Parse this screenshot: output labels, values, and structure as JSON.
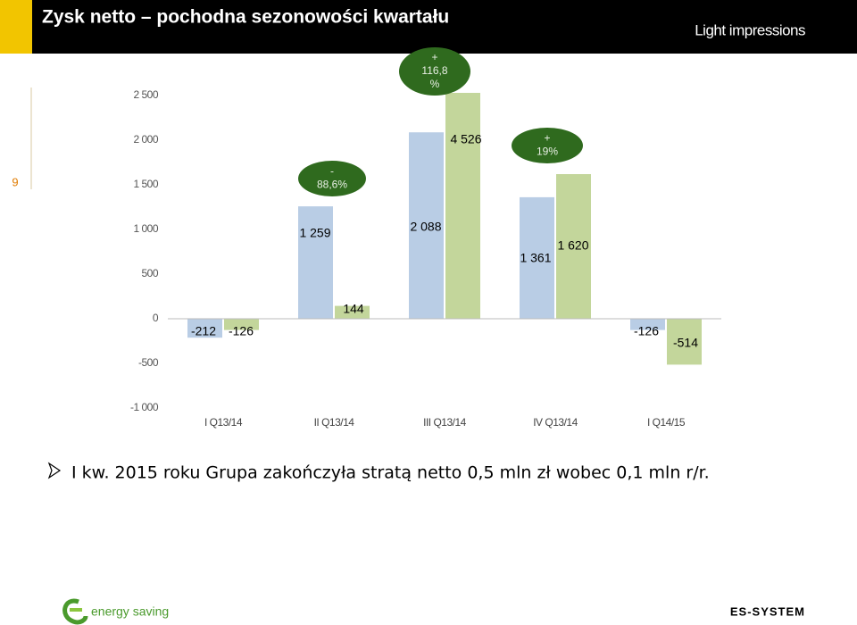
{
  "header": {
    "title": "Zysk netto – pochodna sezonowości kwartału",
    "brand": "Light impressions"
  },
  "page_number": "9",
  "chart_data": {
    "type": "bar",
    "categories": [
      "I Q13/14",
      "II Q13/14",
      "III Q13/14",
      "IV Q13/14",
      "I Q14/15"
    ],
    "series": [
      {
        "color": "#b9cde5",
        "values": [
          -212,
          1259,
          2088,
          1361,
          -126
        ],
        "value_labels": [
          "-212",
          "1 259",
          "2 088",
          "1 361",
          "-126"
        ]
      },
      {
        "color": "#c3d69b",
        "values": [
          -126,
          144,
          4526,
          1620,
          -514
        ],
        "value_labels": [
          "-126",
          "144",
          "4 526",
          "1 620",
          "-514"
        ]
      }
    ],
    "ylim": [
      -1000,
      2500
    ],
    "yticks": [
      {
        "value": -1000,
        "label": "-1 000"
      },
      -500,
      0,
      500,
      {
        "value": 1000,
        "label": "1 000"
      },
      {
        "value": 1500,
        "label": "1 500"
      },
      {
        "value": 2000,
        "label": "2 000"
      },
      {
        "value": 2500,
        "label": "2 500"
      }
    ],
    "annotations": [
      {
        "lines": [
          "+",
          "116,8",
          "%"
        ]
      },
      {
        "lines": [
          "-",
          "88,6%"
        ]
      },
      {
        "lines": [
          "+",
          "19%"
        ]
      }
    ]
  },
  "bullet": "I kw. 2015 roku Grupa zakończyła stratą netto 0,5 mln zł wobec 0,1 mln r/r.",
  "footer": {
    "logo_text": "energy saving",
    "company": "ES-SYSTEM"
  }
}
